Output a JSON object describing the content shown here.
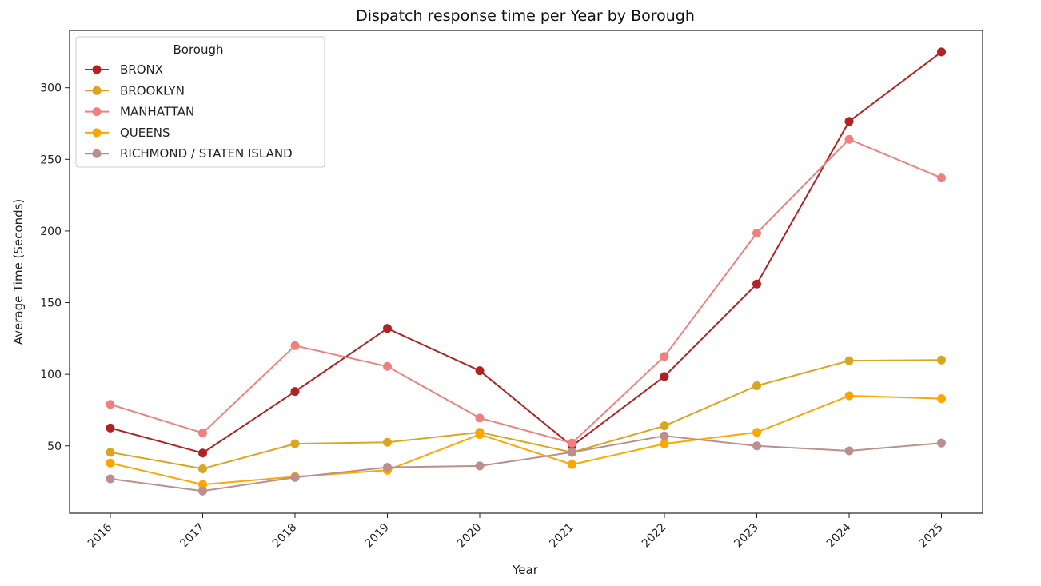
{
  "chart_data": {
    "type": "line",
    "title": "Dispatch response time per Year by Borough",
    "xlabel": "Year",
    "ylabel": "Average Time (Seconds)",
    "x": [
      "2016",
      "2017",
      "2018",
      "2019",
      "2020",
      "2021",
      "2022",
      "2023",
      "2024",
      "2025"
    ],
    "y_ticks": [
      50,
      100,
      150,
      200,
      250,
      300
    ],
    "ylim": [
      3,
      340
    ],
    "grid": false,
    "legend": {
      "title": "Borough",
      "placement": "upper-left"
    },
    "series": [
      {
        "name": "BRONX",
        "color": "#b22222",
        "values": [
          62.5,
          45,
          88,
          132,
          102.5,
          50,
          98.5,
          163,
          276.5,
          325
        ]
      },
      {
        "name": "BROOKLYN",
        "color": "#daa520",
        "values": [
          45.5,
          34,
          51.5,
          52.5,
          59.5,
          45.5,
          64,
          92,
          109.5,
          110
        ]
      },
      {
        "name": "MANHATTAN",
        "color": "#f08080",
        "values": [
          79,
          59,
          120,
          105.5,
          69.5,
          52,
          112.5,
          198.5,
          264,
          237
        ]
      },
      {
        "name": "QUEENS",
        "color": "#ffa500",
        "values": [
          38,
          23,
          28.5,
          33,
          58,
          37,
          51.5,
          59.5,
          85,
          83
        ]
      },
      {
        "name": "RICHMOND / STATEN ISLAND",
        "color": "#bc8f8f",
        "values": [
          27,
          18.5,
          28,
          35,
          36,
          45.5,
          57,
          50,
          46.5,
          52
        ]
      }
    ]
  }
}
